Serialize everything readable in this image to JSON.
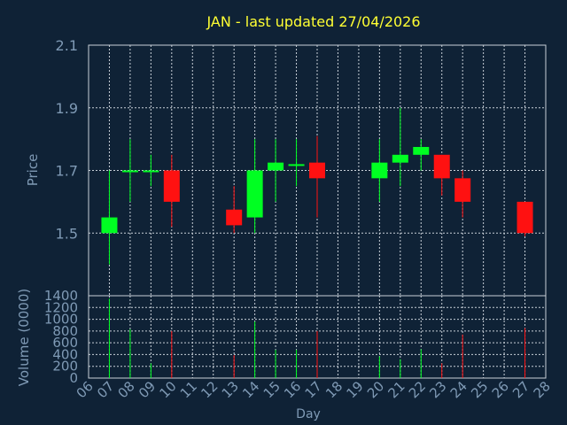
{
  "chart_data": [
    {
      "type": "candlestick",
      "title": "JAN - last updated 27/04/2026",
      "ylabel": "Price",
      "ylim": [
        1.3,
        2.1
      ],
      "yticks": [
        "1.5",
        "1.7",
        "1.9",
        "2.1"
      ],
      "grid": true,
      "colors": {
        "up": "#00ff22",
        "down": "#ff1111",
        "background": "#0f2236",
        "title": "#ffff33",
        "text": "#7f9ab5"
      },
      "candles": [
        {
          "day": "07",
          "open": 1.5,
          "close": 1.55,
          "high": 1.7,
          "low": 1.4
        },
        {
          "day": "08",
          "open": 1.7,
          "close": 1.7,
          "high": 1.8,
          "low": 1.6
        },
        {
          "day": "09",
          "open": 1.7,
          "close": 1.7,
          "high": 1.75,
          "low": 1.65
        },
        {
          "day": "10",
          "open": 1.7,
          "close": 1.6,
          "high": 1.75,
          "low": 1.52
        },
        {
          "day": "13",
          "open": 1.575,
          "close": 1.525,
          "high": 1.65,
          "low": 1.5
        },
        {
          "day": "14",
          "open": 1.55,
          "close": 1.7,
          "high": 1.8,
          "low": 1.5
        },
        {
          "day": "15",
          "open": 1.7,
          "close": 1.725,
          "high": 1.8,
          "low": 1.6
        },
        {
          "day": "16",
          "open": 1.72,
          "close": 1.72,
          "high": 1.8,
          "low": 1.65
        },
        {
          "day": "17",
          "open": 1.725,
          "close": 1.675,
          "high": 1.81,
          "low": 1.55
        },
        {
          "day": "20",
          "open": 1.675,
          "close": 1.725,
          "high": 1.8,
          "low": 1.6
        },
        {
          "day": "21",
          "open": 1.725,
          "close": 1.75,
          "high": 1.9,
          "low": 1.65
        },
        {
          "day": "22",
          "open": 1.75,
          "close": 1.775,
          "high": 1.8,
          "low": 1.7
        },
        {
          "day": "23",
          "open": 1.75,
          "close": 1.675,
          "high": 1.75,
          "low": 1.62
        },
        {
          "day": "24",
          "open": 1.675,
          "close": 1.6,
          "high": 1.7,
          "low": 1.55
        },
        {
          "day": "27",
          "open": 1.6,
          "close": 1.5,
          "high": 1.6,
          "low": 1.49
        }
      ]
    },
    {
      "type": "bar",
      "ylabel": "Volume (0000)",
      "xlabel": "Day",
      "ylim": [
        0,
        1400
      ],
      "yticks": [
        "0",
        "200",
        "400",
        "600",
        "800",
        "1000",
        "1200",
        "1400"
      ],
      "xticks": [
        "06",
        "07",
        "08",
        "09",
        "10",
        "11",
        "12",
        "13",
        "14",
        "15",
        "16",
        "17",
        "18",
        "19",
        "20",
        "21",
        "22",
        "23",
        "24",
        "25",
        "26",
        "27",
        "28"
      ],
      "grid": true,
      "bars": [
        {
          "day": "07",
          "value": 1350,
          "color": "#00ff22"
        },
        {
          "day": "08",
          "value": 830,
          "color": "#00ff22"
        },
        {
          "day": "09",
          "value": 250,
          "color": "#00ff22"
        },
        {
          "day": "10",
          "value": 800,
          "color": "#ff1111"
        },
        {
          "day": "13",
          "value": 390,
          "color": "#ff1111"
        },
        {
          "day": "14",
          "value": 960,
          "color": "#00ff22"
        },
        {
          "day": "15",
          "value": 480,
          "color": "#00ff22"
        },
        {
          "day": "16",
          "value": 480,
          "color": "#00ff22"
        },
        {
          "day": "17",
          "value": 800,
          "color": "#ff1111"
        },
        {
          "day": "20",
          "value": 370,
          "color": "#00ff22"
        },
        {
          "day": "21",
          "value": 320,
          "color": "#00ff22"
        },
        {
          "day": "22",
          "value": 490,
          "color": "#00ff22"
        },
        {
          "day": "23",
          "value": 250,
          "color": "#ff1111"
        },
        {
          "day": "24",
          "value": 740,
          "color": "#ff1111"
        },
        {
          "day": "27",
          "value": 850,
          "color": "#ff1111"
        }
      ]
    }
  ]
}
